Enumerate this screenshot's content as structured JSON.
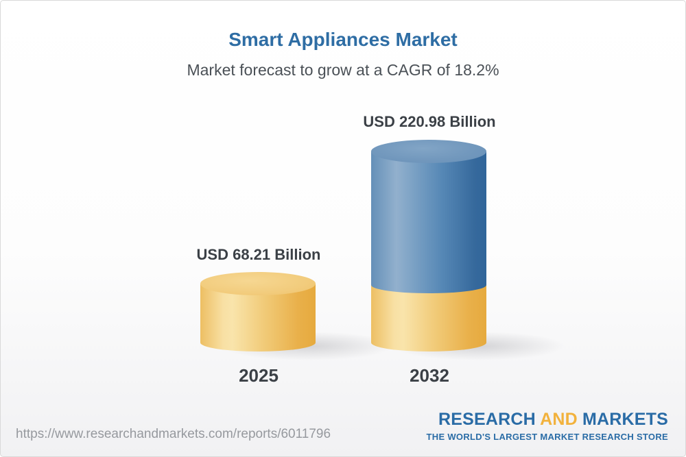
{
  "header": {
    "title": "Smart Appliances Market",
    "subtitle": "Market forecast to grow at a CAGR of 18.2%"
  },
  "chart_data": {
    "type": "bar",
    "style": "3d-cylinder",
    "title": "Smart Appliances Market",
    "subtitle": "Market forecast to grow at a CAGR of 18.2%",
    "cagr_percent": 18.2,
    "unit": "USD Billion",
    "categories": [
      "2025",
      "2032"
    ],
    "values": [
      68.21,
      220.98
    ],
    "value_labels": [
      "USD 68.21 Billion",
      "USD 220.98 Billion"
    ],
    "grid": false,
    "legend_position": "none",
    "axis_labels_shown": false,
    "colors": {
      "bar_2025": "#f0c873",
      "bar_2032_growth_segment": "#5d8ab4",
      "bar_2032_base_segment": "#f0c873"
    },
    "visual_note": "2032 cylinder is stacked: yellow base segment equals the 2025 value, blue segment above represents growth to 220.98"
  },
  "footer": {
    "report_url": "https://www.researchandmarkets.com/reports/6011796",
    "logo": {
      "word1": "RESEARCH",
      "word2": "AND",
      "word3": "MARKETS",
      "tagline": "THE WORLD'S LARGEST MARKET RESEARCH STORE",
      "brand_blue": "#2a6ca6",
      "brand_gold": "#f2b23c"
    }
  },
  "colors": {
    "title_blue": "#2e6da4",
    "subtitle_gray": "#4a5056",
    "label_dark": "#3b4046",
    "url_gray": "#96999e"
  }
}
